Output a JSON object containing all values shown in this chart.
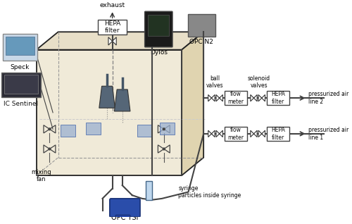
{
  "bg_color": "#ffffff",
  "chamber_fill": "#f0ead8",
  "chamber_top_fill": "#e8dfc8",
  "chamber_right_fill": "#e0d4b0",
  "labels": {
    "exhaust": "exhaust",
    "hepa_top": "HEPA\nfilter",
    "dylos": "Dylos",
    "opc_n2": "OPC N2",
    "speck": "Speck",
    "ic_sentinel": "IC Sentinel",
    "mixing_fan": "mixing\nfan",
    "opc_tsi": "OPC TSI",
    "ball_valves": "ball\nvalves",
    "solenoid_valves": "solenoid\nvalves",
    "flow_meter": "flow\nmeter",
    "hepa_filter": "HEPA\nfilter",
    "press_air_2": "pressurized air\nline 2",
    "press_air_1": "pressurized air\nline 1",
    "syringe_label": "syringe\nparticles inside syringe"
  }
}
